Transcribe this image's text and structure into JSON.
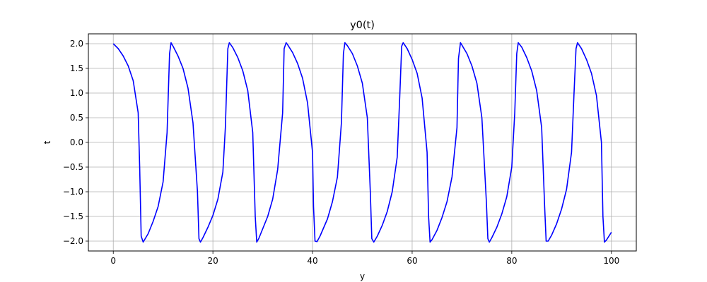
{
  "chart_data": {
    "type": "line",
    "title": "y0(t)",
    "xlabel": "y",
    "ylabel": "t",
    "xlim": [
      -5,
      105
    ],
    "ylim": [
      -2.2,
      2.2
    ],
    "xticks": [
      0,
      20,
      40,
      60,
      80,
      100
    ],
    "yticks": [
      -2.0,
      -1.5,
      -1.0,
      -0.5,
      0.0,
      0.5,
      1.0,
      1.5,
      2.0
    ],
    "grid": true,
    "series": [
      {
        "color": "#0000ff",
        "x": [
          0,
          1,
          2,
          3,
          4,
          5,
          5.3,
          5.6,
          6,
          7,
          8,
          9,
          10,
          10.8,
          11.3,
          11.6,
          12,
          13,
          14,
          15,
          16,
          16.9,
          17.2,
          17.5,
          18,
          19,
          20,
          21,
          22,
          22.5,
          23,
          23.3,
          24,
          25,
          26,
          27,
          28,
          28.5,
          28.8,
          29.2,
          30,
          31,
          32,
          33,
          34,
          34.3,
          34.7,
          35,
          36,
          37,
          38,
          39,
          40,
          40.2,
          40.5,
          40.9,
          41.5,
          43,
          44,
          45,
          45.8,
          46.2,
          46.5,
          47,
          48,
          49,
          50,
          51,
          51.6,
          51.9,
          52.3,
          53,
          54,
          55,
          56,
          57,
          57.5,
          57.9,
          58.2,
          59,
          60,
          61,
          62,
          63,
          63.3,
          63.6,
          64,
          65,
          66,
          67,
          68,
          69,
          69.3,
          69.7,
          70,
          71,
          72,
          73,
          74,
          74.9,
          75.2,
          75.5,
          76,
          77,
          78,
          79,
          80,
          80.6,
          81,
          81.3,
          82,
          83,
          84,
          85,
          86,
          86.6,
          86.9,
          87.3,
          88,
          89,
          90,
          91,
          92,
          92.5,
          92.9,
          93.2,
          94,
          95,
          96,
          97,
          98,
          98.3,
          98.6,
          99,
          100
        ],
        "y": [
          2.0,
          1.9,
          1.75,
          1.55,
          1.25,
          0.6,
          -0.5,
          -1.9,
          -2.02,
          -1.85,
          -1.6,
          -1.3,
          -0.8,
          0.2,
          1.8,
          2.02,
          1.95,
          1.75,
          1.5,
          1.1,
          0.4,
          -1.0,
          -1.95,
          -2.02,
          -1.93,
          -1.72,
          -1.48,
          -1.15,
          -0.6,
          0.3,
          1.9,
          2.02,
          1.92,
          1.72,
          1.45,
          1.05,
          0.2,
          -1.5,
          -2.02,
          -1.95,
          -1.75,
          -1.5,
          -1.15,
          -0.55,
          0.6,
          1.9,
          2.02,
          1.98,
          1.82,
          1.6,
          1.3,
          0.8,
          -0.2,
          -1.3,
          -2.0,
          -2.01,
          -1.9,
          -1.55,
          -1.2,
          -0.7,
          0.4,
          1.8,
          2.02,
          1.96,
          1.8,
          1.55,
          1.2,
          0.5,
          -1.0,
          -1.95,
          -2.02,
          -1.9,
          -1.68,
          -1.4,
          -1.0,
          -0.3,
          0.9,
          1.95,
          2.02,
          1.9,
          1.68,
          1.4,
          0.9,
          -0.2,
          -1.5,
          -2.02,
          -1.97,
          -1.78,
          -1.52,
          -1.2,
          -0.7,
          0.3,
          1.7,
          2.02,
          1.97,
          1.8,
          1.55,
          1.2,
          0.5,
          -1.2,
          -1.95,
          -2.02,
          -1.93,
          -1.72,
          -1.45,
          -1.1,
          -0.5,
          0.6,
          1.8,
          2.02,
          1.93,
          1.72,
          1.45,
          1.05,
          0.3,
          -1.3,
          -2.0,
          -2.0,
          -1.88,
          -1.65,
          -1.35,
          -0.95,
          -0.2,
          1.0,
          1.9,
          2.02,
          1.9,
          1.68,
          1.4,
          0.95,
          0.0,
          -1.5,
          -2.02,
          -1.98,
          -1.82
        ]
      }
    ]
  }
}
